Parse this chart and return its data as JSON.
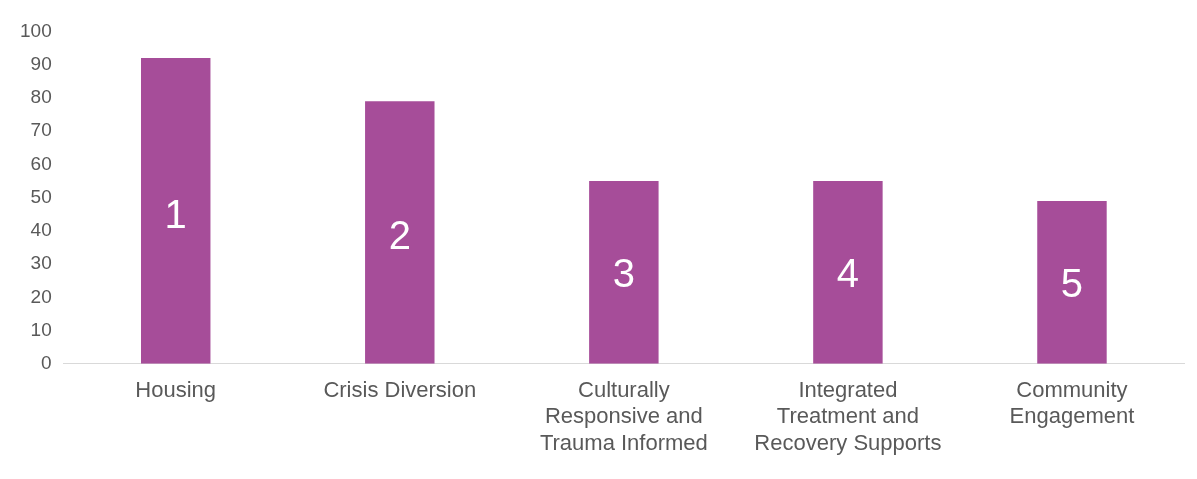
{
  "chart_data": {
    "type": "bar",
    "categories": [
      "Housing",
      "Crisis Diversion",
      "Culturally Responsive and Trauma Informed",
      "Integrated Treatment and Recovery Supports",
      "Community Engagement"
    ],
    "values": [
      92,
      79,
      55,
      55,
      49
    ],
    "color": "#a64d99",
    "annotations": [
      "1",
      "2",
      "3",
      "4",
      "5"
    ],
    "ylim": [
      0,
      100
    ],
    "yticks": [
      0,
      10,
      20,
      30,
      40,
      50,
      60,
      70,
      80,
      90,
      100
    ],
    "grid": false,
    "legend": false
  }
}
